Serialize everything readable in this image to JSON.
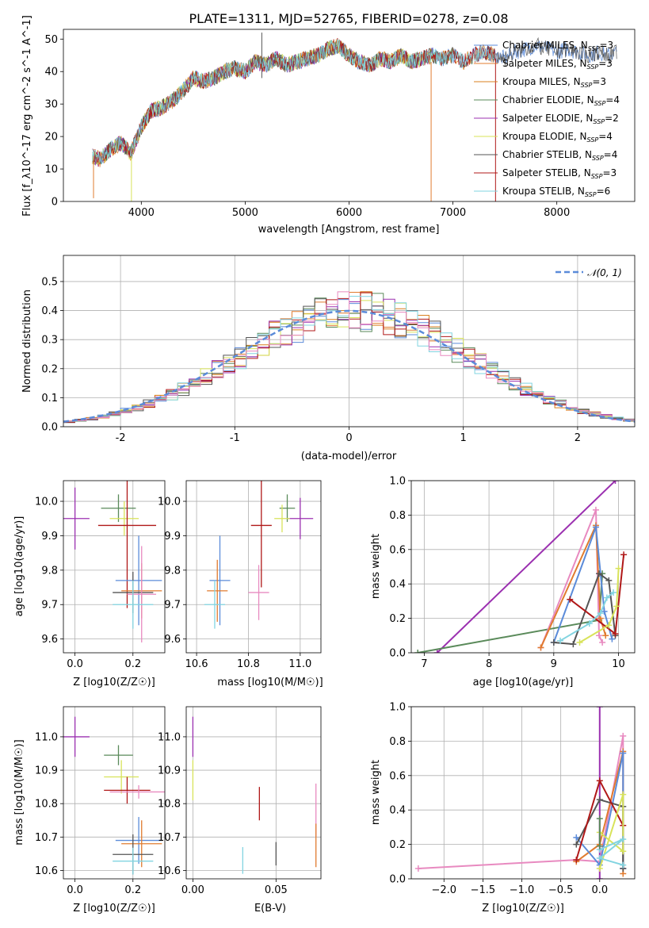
{
  "colors": {
    "chabrier_miles": "#5b8bd9",
    "salpeter_miles": "#e07b2f",
    "kroupa_miles": "#d97f1f",
    "chabrier_elodie": "#5a8a5a",
    "salpeter_elodie": "#9b30b0",
    "kroupa_elodie": "#d8e35a",
    "chabrier_stelib": "#555555",
    "salpeter_stelib": "#b01818",
    "kroupa_stelib": "#82d4e0",
    "extra_pink": "#e88ac0",
    "normal_curve": "#5b8bd9"
  },
  "chart_data": [
    {
      "id": "spectrum",
      "type": "line",
      "title": "PLATE=1311, MJD=52765, FIBERID=0278, z=0.08",
      "xlabel": "wavelength [Angstrom, rest frame]",
      "ylabel": "Flux [f_λ10^-17 erg cm^-2 s^-1 A^-1]",
      "xlim": [
        3250,
        8750
      ],
      "ylim": [
        0,
        53
      ],
      "xticks": [
        4000,
        5000,
        6000,
        7000,
        8000
      ],
      "yticks": [
        0,
        10,
        20,
        30,
        40,
        50
      ],
      "grid": false,
      "legend_position": "right",
      "legend": [
        {
          "label": "Chabrier MILES, N",
          "sub": "SSP",
          "tail": "=3",
          "color_key": "chabrier_miles"
        },
        {
          "label": "Salpeter MILES, N",
          "sub": "SSP",
          "tail": "=3",
          "color_key": "salpeter_miles"
        },
        {
          "label": "Kroupa MILES, N",
          "sub": "SSP",
          "tail": "=3",
          "color_key": "kroupa_miles"
        },
        {
          "label": "Chabrier ELODIE, N",
          "sub": "SSP",
          "tail": "=4",
          "color_key": "chabrier_elodie"
        },
        {
          "label": "Salpeter ELODIE, N",
          "sub": "SSP",
          "tail": "=2",
          "color_key": "salpeter_elodie"
        },
        {
          "label": "Kroupa ELODIE, N",
          "sub": "SSP",
          "tail": "=4",
          "color_key": "kroupa_elodie"
        },
        {
          "label": "Chabrier STELIB, N",
          "sub": "SSP",
          "tail": "=4",
          "color_key": "chabrier_stelib"
        },
        {
          "label": "Salpeter STELIB, N",
          "sub": "SSP",
          "tail": "=3",
          "color_key": "salpeter_stelib"
        },
        {
          "label": "Kroupa STELIB, N",
          "sub": "SSP",
          "tail": "=6",
          "color_key": "kroupa_stelib"
        }
      ],
      "envelope": {
        "x": [
          3530,
          3600,
          3700,
          3800,
          3900,
          4000,
          4100,
          4200,
          4300,
          4400,
          4500,
          4600,
          4700,
          4800,
          4900,
          5000,
          5100,
          5200,
          5300,
          5400,
          5500,
          5600,
          5700,
          5800,
          5900,
          6000,
          6100,
          6200,
          6300,
          6400,
          6500,
          6600,
          6700,
          6800,
          6900,
          7000,
          7100,
          7200,
          7300,
          7400,
          7500,
          7600,
          7700,
          7800,
          7900,
          8000,
          8100,
          8200,
          8300,
          8400,
          8500,
          8580
        ],
        "y": [
          14,
          13,
          16,
          18,
          15,
          23,
          28,
          29,
          31,
          34,
          38,
          37,
          38,
          40,
          41,
          40,
          43,
          42,
          44,
          42,
          43,
          44,
          45,
          47,
          48,
          45,
          43,
          42,
          44,
          43,
          45,
          43,
          44,
          45,
          44,
          45,
          43,
          45,
          46,
          45,
          44,
          46,
          47,
          48,
          47,
          46,
          47,
          46,
          45,
          46,
          45,
          46
        ]
      },
      "spikes": [
        {
          "x": 5160,
          "y0": 38,
          "y1": 52,
          "color_key": "chabrier_stelib"
        },
        {
          "x": 6790,
          "y0": 0,
          "y1": 43,
          "color_key": "salpeter_miles"
        },
        {
          "x": 7410,
          "y0": 0,
          "y1": 44,
          "color_key": "salpeter_stelib"
        },
        {
          "x": 3905,
          "y0": 0,
          "y1": 14,
          "color_key": "kroupa_elodie"
        },
        {
          "x": 3540,
          "y0": 1,
          "y1": 14,
          "color_key": "salpeter_miles"
        }
      ]
    },
    {
      "id": "residuals",
      "type": "histogram",
      "xlabel": "(data-model)/error",
      "ylabel": "Normed distribution",
      "xlim": [
        -2.5,
        2.5
      ],
      "ylim": [
        0,
        0.59
      ],
      "xticks": [
        -2,
        -1,
        0,
        1,
        2
      ],
      "yticks": [
        0.0,
        0.1,
        0.2,
        0.3,
        0.4,
        0.5
      ],
      "grid": true,
      "legend_position": "top-right",
      "normal_label": "𝒩(0, 1)",
      "bin_width": 0.1
    },
    {
      "id": "age_vs_z",
      "type": "errorbar",
      "xlabel": "Z [log10(Z/Z☉)]",
      "ylabel": "age [log10(age/yr)]",
      "xlim": [
        -0.04,
        0.31
      ],
      "ylim": [
        9.56,
        10.06
      ],
      "xticks": [
        0.0,
        0.2
      ],
      "yticks": [
        9.6,
        9.7,
        9.8,
        9.9,
        10.0
      ],
      "grid": true,
      "points": [
        {
          "x": 0.0,
          "xerr": 0.05,
          "y": 9.95,
          "yerr": 0.09,
          "color_key": "salpeter_elodie"
        },
        {
          "x": 0.15,
          "xerr": 0.06,
          "y": 9.98,
          "yerr": 0.04,
          "color_key": "chabrier_elodie"
        },
        {
          "x": 0.17,
          "xerr": 0.05,
          "y": 9.95,
          "yerr": 0.05,
          "color_key": "kroupa_elodie"
        },
        {
          "x": 0.18,
          "xerr": 0.1,
          "y": 9.93,
          "yerr": 0.24,
          "color_key": "salpeter_stelib"
        },
        {
          "x": 0.22,
          "xerr": 0.08,
          "y": 9.77,
          "yerr": 0.13,
          "color_key": "chabrier_miles"
        },
        {
          "x": 0.23,
          "xerr": 0.07,
          "y": 9.74,
          "yerr": 0.08,
          "color_key": "salpeter_miles"
        },
        {
          "x": 0.2,
          "xerr": 0.07,
          "y": 9.735,
          "yerr": 0.06,
          "color_key": "chabrier_stelib"
        },
        {
          "x": 0.23,
          "xerr": 0.05,
          "y": 9.73,
          "yerr": 0.14,
          "color_key": "extra_pink"
        },
        {
          "x": 0.2,
          "xerr": 0.07,
          "y": 9.7,
          "yerr": 0.07,
          "color_key": "kroupa_stelib"
        }
      ]
    },
    {
      "id": "age_vs_mass",
      "type": "errorbar",
      "xlabel": "mass [log10(M/M☉)]",
      "ylabel": "",
      "xlim": [
        10.56,
        11.08
      ],
      "ylim": [
        9.56,
        10.06
      ],
      "xticks": [
        10.6,
        10.8,
        11.0
      ],
      "yticks": [
        9.6,
        9.7,
        9.8,
        9.9,
        10.0
      ],
      "grid": true,
      "points": [
        {
          "x": 11.0,
          "xerr": 0.05,
          "y": 9.95,
          "yerr": 0.06,
          "color_key": "salpeter_elodie"
        },
        {
          "x": 10.95,
          "xerr": 0.03,
          "y": 9.98,
          "yerr": 0.04,
          "color_key": "chabrier_elodie"
        },
        {
          "x": 10.93,
          "xerr": 0.03,
          "y": 9.95,
          "yerr": 0.04,
          "color_key": "kroupa_elodie"
        },
        {
          "x": 10.85,
          "xerr": 0.04,
          "y": 9.93,
          "yerr": 0.18,
          "color_key": "salpeter_stelib"
        },
        {
          "x": 10.69,
          "xerr": 0.04,
          "y": 9.77,
          "yerr": 0.13,
          "color_key": "chabrier_miles"
        },
        {
          "x": 10.68,
          "xerr": 0.04,
          "y": 9.74,
          "yerr": 0.09,
          "color_key": "salpeter_miles"
        },
        {
          "x": 10.84,
          "xerr": 0.04,
          "y": 9.735,
          "yerr": 0.08,
          "color_key": "extra_pink"
        },
        {
          "x": 10.67,
          "xerr": 0.04,
          "y": 9.7,
          "yerr": 0.07,
          "color_key": "kroupa_stelib"
        }
      ]
    },
    {
      "id": "weight_vs_age",
      "type": "line",
      "xlabel": "age [log10(age/yr)]",
      "ylabel": "mass weight",
      "xlim": [
        6.8,
        10.25
      ],
      "ylim": [
        0.0,
        1.0
      ],
      "xticks": [
        7,
        8,
        9,
        10
      ],
      "yticks": [
        0.0,
        0.2,
        0.4,
        0.6,
        0.8,
        1.0
      ],
      "grid": true,
      "series": [
        {
          "color_key": "salpeter_elodie",
          "x": [
            7.2,
            9.95
          ],
          "y": [
            0.0,
            1.0
          ]
        },
        {
          "color_key": "chabrier_elodie",
          "x": [
            6.9,
            9.7,
            9.75
          ],
          "y": [
            0.0,
            0.19,
            0.46
          ]
        },
        {
          "color_key": "extra_pink",
          "x": [
            8.8,
            9.65,
            9.7,
            9.75
          ],
          "y": [
            0.03,
            0.83,
            0.1,
            0.06
          ]
        },
        {
          "color_key": "salpeter_miles",
          "x": [
            8.8,
            9.65,
            9.72,
            9.8
          ],
          "y": [
            0.03,
            0.74,
            0.2,
            0.1
          ]
        },
        {
          "color_key": "chabrier_miles",
          "x": [
            9.0,
            9.65,
            9.78,
            9.9
          ],
          "y": [
            0.06,
            0.73,
            0.24,
            0.08
          ]
        },
        {
          "color_key": "chabrier_stelib",
          "x": [
            9.0,
            9.3,
            9.7,
            9.85,
            9.95
          ],
          "y": [
            0.06,
            0.05,
            0.46,
            0.42,
            0.1
          ]
        },
        {
          "color_key": "salpeter_stelib",
          "x": [
            9.25,
            9.95,
            10.08
          ],
          "y": [
            0.31,
            0.11,
            0.57
          ]
        },
        {
          "color_key": "kroupa_elodie",
          "x": [
            9.4,
            9.85,
            9.97,
            10.0
          ],
          "y": [
            0.06,
            0.16,
            0.27,
            0.49
          ]
        },
        {
          "color_key": "kroupa_stelib",
          "x": [
            9.1,
            9.55,
            9.72,
            9.82,
            9.92
          ],
          "y": [
            0.07,
            0.17,
            0.23,
            0.32,
            0.35
          ]
        }
      ]
    },
    {
      "id": "mass_vs_z",
      "type": "errorbar",
      "xlabel": "Z [log10(Z/Z☉)]",
      "ylabel": "mass [log10(M/M☉)]",
      "xlim": [
        -0.04,
        0.31
      ],
      "ylim": [
        10.575,
        11.09
      ],
      "xticks": [
        0.0,
        0.2
      ],
      "yticks": [
        10.6,
        10.7,
        10.8,
        10.9,
        11.0
      ],
      "grid": true,
      "points": [
        {
          "x": 0.0,
          "xerr": 0.05,
          "y": 11.0,
          "yerr": 0.06,
          "color_key": "salpeter_elodie"
        },
        {
          "x": 0.15,
          "xerr": 0.05,
          "y": 10.945,
          "yerr": 0.03,
          "color_key": "chabrier_elodie"
        },
        {
          "x": 0.16,
          "xerr": 0.06,
          "y": 10.88,
          "yerr": 0.05,
          "color_key": "kroupa_elodie"
        },
        {
          "x": 0.18,
          "xerr": 0.08,
          "y": 10.84,
          "yerr": 0.04,
          "color_key": "salpeter_stelib"
        },
        {
          "x": 0.22,
          "xerr": 0.1,
          "y": 10.835,
          "yerr": 0.02,
          "color_key": "extra_pink"
        },
        {
          "x": 0.22,
          "xerr": 0.08,
          "y": 10.69,
          "yerr": 0.07,
          "color_key": "chabrier_miles"
        },
        {
          "x": 0.23,
          "xerr": 0.07,
          "y": 10.68,
          "yerr": 0.07,
          "color_key": "salpeter_miles"
        },
        {
          "x": 0.2,
          "xerr": 0.07,
          "y": 10.648,
          "yerr": 0.06,
          "color_key": "chabrier_stelib"
        },
        {
          "x": 0.2,
          "xerr": 0.07,
          "y": 10.628,
          "yerr": 0.04,
          "color_key": "kroupa_stelib"
        }
      ]
    },
    {
      "id": "mass_vs_ebv",
      "type": "errorbar",
      "xlabel": "E(B-V)",
      "ylabel": "",
      "xlim": [
        -0.004,
        0.077
      ],
      "ylim": [
        10.575,
        11.09
      ],
      "xticks": [
        0.0,
        0.05
      ],
      "xtick_labels": [
        "0.00",
        "0.05"
      ],
      "yticks": [
        10.6,
        10.7,
        10.8,
        10.9,
        11.0
      ],
      "grid": true,
      "points": [
        {
          "x": 0.0,
          "xerr": 0,
          "y": 11.0,
          "yerr": 0.06,
          "color_key": "salpeter_elodie"
        },
        {
          "x": 0.0,
          "xerr": 0,
          "y": 10.87,
          "yerr": 0.06,
          "color_key": "kroupa_elodie"
        },
        {
          "x": 0.04,
          "xerr": 0,
          "y": 10.8,
          "yerr": 0.05,
          "color_key": "salpeter_stelib"
        },
        {
          "x": 0.03,
          "xerr": 0,
          "y": 10.63,
          "yerr": 0.04,
          "color_key": "kroupa_stelib"
        },
        {
          "x": 0.05,
          "xerr": 0,
          "y": 10.65,
          "yerr": 0.035,
          "color_key": "chabrier_stelib"
        },
        {
          "x": 0.074,
          "xerr": 0,
          "y": 10.78,
          "yerr": 0.08,
          "color_key": "extra_pink"
        },
        {
          "x": 0.074,
          "xerr": 0,
          "y": 10.675,
          "yerr": 0.065,
          "color_key": "salpeter_miles"
        }
      ]
    },
    {
      "id": "weight_vs_z",
      "type": "line",
      "xlabel": "Z [log10(Z/Z☉)]",
      "ylabel": "mass weight",
      "xlim": [
        -2.42,
        0.45
      ],
      "ylim": [
        0.0,
        1.0
      ],
      "xticks": [
        -2.0,
        -1.5,
        -1.0,
        -0.5,
        0.0
      ],
      "xtick_labels": [
        "−2.0",
        "−1.5",
        "−1.0",
        "−0.5",
        "0.0"
      ],
      "yticks": [
        0.0,
        0.2,
        0.4,
        0.6,
        0.8,
        1.0
      ],
      "grid": true,
      "series": [
        {
          "color_key": "salpeter_elodie",
          "x": [
            0.0,
            0.0
          ],
          "y": [
            0.0,
            1.0
          ]
        },
        {
          "color_key": "extra_pink",
          "x": [
            -2.33,
            -0.3,
            0.0,
            0.3,
            0.3
          ],
          "y": [
            0.06,
            0.11,
            0.1,
            0.83,
            0.06
          ]
        },
        {
          "color_key": "salpeter_miles",
          "x": [
            -0.3,
            0.0,
            0.3,
            0.3
          ],
          "y": [
            0.1,
            0.2,
            0.74,
            0.03
          ]
        },
        {
          "color_key": "chabrier_miles",
          "x": [
            -0.3,
            0.0,
            0.3,
            0.3
          ],
          "y": [
            0.24,
            0.08,
            0.73,
            0.06
          ]
        },
        {
          "color_key": "chabrier_stelib",
          "x": [
            -0.3,
            0.0,
            0.3,
            0.3
          ],
          "y": [
            0.2,
            0.46,
            0.42,
            0.06
          ]
        },
        {
          "color_key": "salpeter_stelib",
          "x": [
            -0.3,
            0.0,
            0.3
          ],
          "y": [
            0.11,
            0.57,
            0.31
          ]
        },
        {
          "color_key": "kroupa_elodie",
          "x": [
            0.0,
            0.3,
            0.3,
            0.0
          ],
          "y": [
            0.06,
            0.49,
            0.16,
            0.27
          ]
        },
        {
          "color_key": "kroupa_stelib",
          "x": [
            0.0,
            0.3,
            0.0,
            0.3
          ],
          "y": [
            0.17,
            0.23,
            0.12,
            0.08
          ]
        },
        {
          "color_key": "chabrier_elodie",
          "x": [
            0.0,
            0.0
          ],
          "y": [
            0.19,
            0.35
          ]
        }
      ]
    }
  ]
}
